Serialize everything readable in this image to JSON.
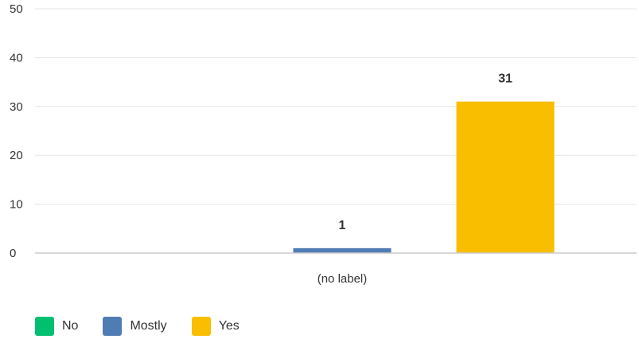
{
  "chart_data": {
    "type": "bar",
    "title": "",
    "xlabel": "",
    "ylabel": "",
    "categories": [
      "(no label)"
    ],
    "series": [
      {
        "name": "No",
        "color": "#00bf6f",
        "values": [
          0
        ]
      },
      {
        "name": "Mostly",
        "color": "#507cb6",
        "values": [
          1
        ]
      },
      {
        "name": "Yes",
        "color": "#f9be00",
        "values": [
          31
        ]
      }
    ],
    "ylim": [
      0,
      50
    ],
    "yticks": [
      0,
      10,
      20,
      30,
      40,
      50
    ],
    "grid": true,
    "legend_position": "bottom-left"
  }
}
